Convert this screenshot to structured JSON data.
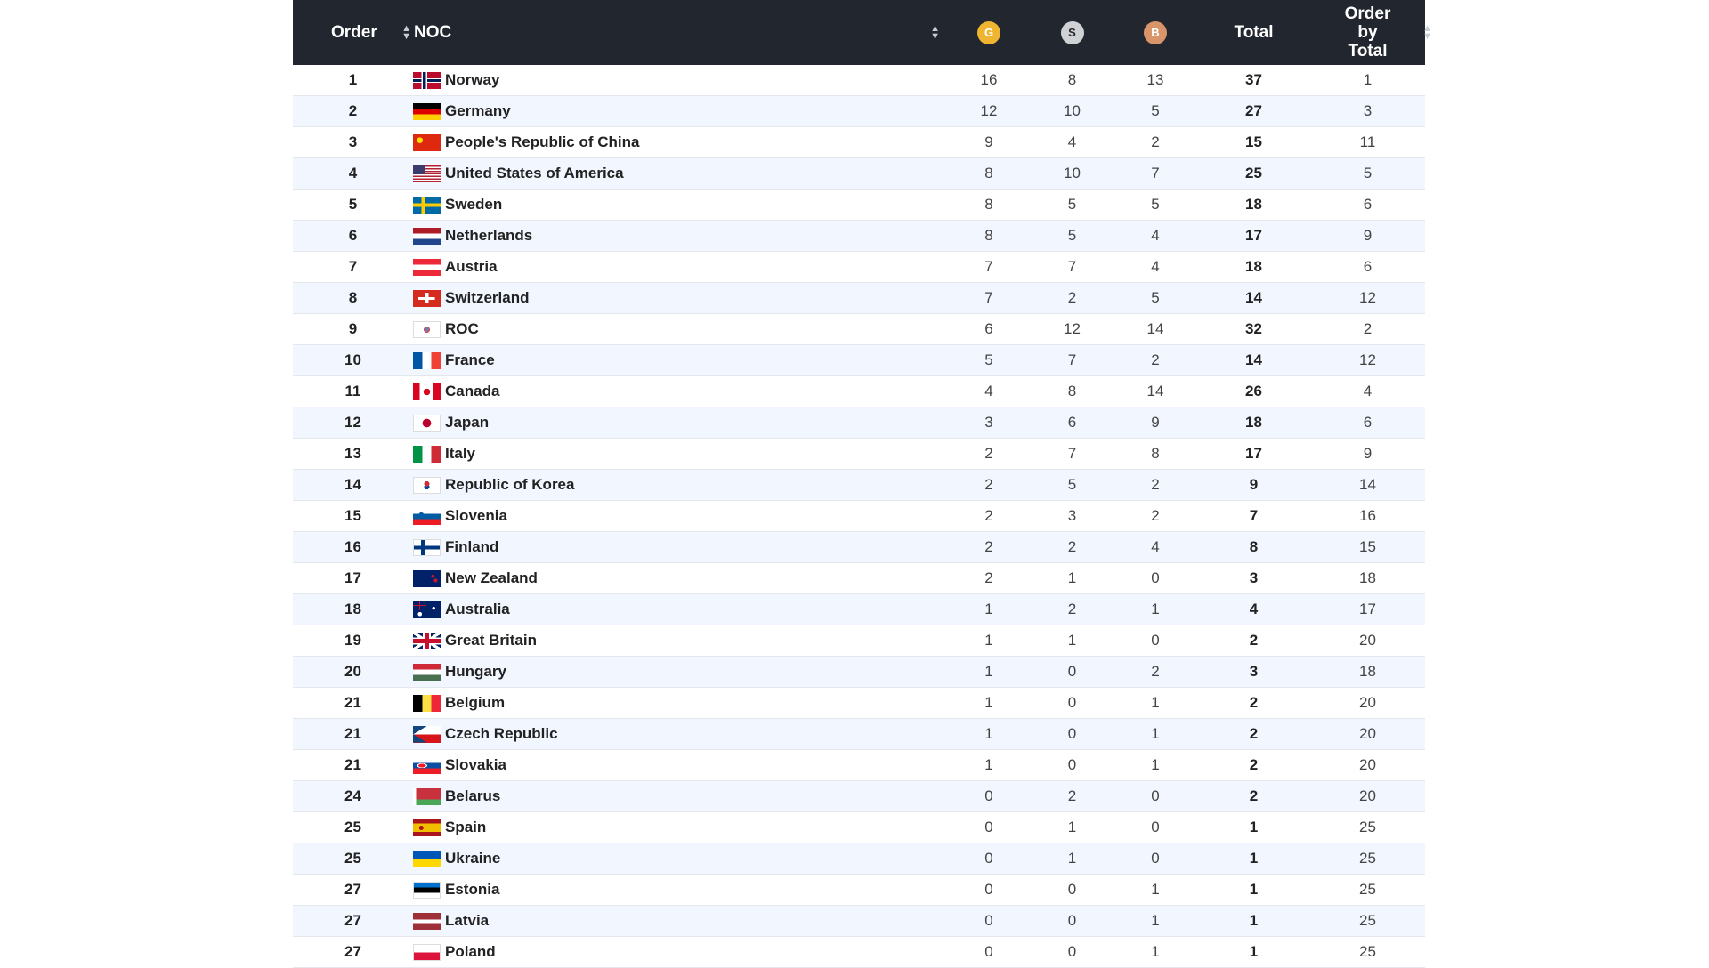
{
  "header": {
    "order": "Order",
    "noc": "NOC",
    "gold": "G",
    "silver": "S",
    "bronze": "B",
    "total": "Total",
    "order_by_total_lines": [
      "Order",
      "by",
      "Total"
    ]
  },
  "colors": {
    "header_bg": "#22262f",
    "gold": "#f0b530",
    "silver": "#cfd1d4",
    "bronze": "#d9956a",
    "row_alt": "#f1f6ff"
  },
  "rows": [
    {
      "order": "1",
      "noc": "Norway",
      "g": "16",
      "s": "8",
      "b": "13",
      "total": "37",
      "obt": "1",
      "flag": "norway-flag-icon"
    },
    {
      "order": "2",
      "noc": "Germany",
      "g": "12",
      "s": "10",
      "b": "5",
      "total": "27",
      "obt": "3",
      "flag": "germany-flag-icon"
    },
    {
      "order": "3",
      "noc": "People's Republic of China",
      "g": "9",
      "s": "4",
      "b": "2",
      "total": "15",
      "obt": "11",
      "flag": "china-flag-icon"
    },
    {
      "order": "4",
      "noc": "United States of America",
      "g": "8",
      "s": "10",
      "b": "7",
      "total": "25",
      "obt": "5",
      "flag": "usa-flag-icon"
    },
    {
      "order": "5",
      "noc": "Sweden",
      "g": "8",
      "s": "5",
      "b": "5",
      "total": "18",
      "obt": "6",
      "flag": "sweden-flag-icon"
    },
    {
      "order": "6",
      "noc": "Netherlands",
      "g": "8",
      "s": "5",
      "b": "4",
      "total": "17",
      "obt": "9",
      "flag": "netherlands-flag-icon"
    },
    {
      "order": "7",
      "noc": "Austria",
      "g": "7",
      "s": "7",
      "b": "4",
      "total": "18",
      "obt": "6",
      "flag": "austria-flag-icon"
    },
    {
      "order": "8",
      "noc": "Switzerland",
      "g": "7",
      "s": "2",
      "b": "5",
      "total": "14",
      "obt": "12",
      "flag": "switzerland-flag-icon"
    },
    {
      "order": "9",
      "noc": "ROC",
      "g": "6",
      "s": "12",
      "b": "14",
      "total": "32",
      "obt": "2",
      "flag": "roc-flag-icon"
    },
    {
      "order": "10",
      "noc": "France",
      "g": "5",
      "s": "7",
      "b": "2",
      "total": "14",
      "obt": "12",
      "flag": "france-flag-icon"
    },
    {
      "order": "11",
      "noc": "Canada",
      "g": "4",
      "s": "8",
      "b": "14",
      "total": "26",
      "obt": "4",
      "flag": "canada-flag-icon"
    },
    {
      "order": "12",
      "noc": "Japan",
      "g": "3",
      "s": "6",
      "b": "9",
      "total": "18",
      "obt": "6",
      "flag": "japan-flag-icon"
    },
    {
      "order": "13",
      "noc": "Italy",
      "g": "2",
      "s": "7",
      "b": "8",
      "total": "17",
      "obt": "9",
      "flag": "italy-flag-icon"
    },
    {
      "order": "14",
      "noc": "Republic of Korea",
      "g": "2",
      "s": "5",
      "b": "2",
      "total": "9",
      "obt": "14",
      "flag": "korea-flag-icon"
    },
    {
      "order": "15",
      "noc": "Slovenia",
      "g": "2",
      "s": "3",
      "b": "2",
      "total": "7",
      "obt": "16",
      "flag": "slovenia-flag-icon"
    },
    {
      "order": "16",
      "noc": "Finland",
      "g": "2",
      "s": "2",
      "b": "4",
      "total": "8",
      "obt": "15",
      "flag": "finland-flag-icon"
    },
    {
      "order": "17",
      "noc": "New Zealand",
      "g": "2",
      "s": "1",
      "b": "0",
      "total": "3",
      "obt": "18",
      "flag": "new-zealand-flag-icon"
    },
    {
      "order": "18",
      "noc": "Australia",
      "g": "1",
      "s": "2",
      "b": "1",
      "total": "4",
      "obt": "17",
      "flag": "australia-flag-icon"
    },
    {
      "order": "19",
      "noc": "Great Britain",
      "g": "1",
      "s": "1",
      "b": "0",
      "total": "2",
      "obt": "20",
      "flag": "great-britain-flag-icon"
    },
    {
      "order": "20",
      "noc": "Hungary",
      "g": "1",
      "s": "0",
      "b": "2",
      "total": "3",
      "obt": "18",
      "flag": "hungary-flag-icon"
    },
    {
      "order": "21",
      "noc": "Belgium",
      "g": "1",
      "s": "0",
      "b": "1",
      "total": "2",
      "obt": "20",
      "flag": "belgium-flag-icon"
    },
    {
      "order": "21",
      "noc": "Czech Republic",
      "g": "1",
      "s": "0",
      "b": "1",
      "total": "2",
      "obt": "20",
      "flag": "czech-flag-icon"
    },
    {
      "order": "21",
      "noc": "Slovakia",
      "g": "1",
      "s": "0",
      "b": "1",
      "total": "2",
      "obt": "20",
      "flag": "slovakia-flag-icon"
    },
    {
      "order": "24",
      "noc": "Belarus",
      "g": "0",
      "s": "2",
      "b": "0",
      "total": "2",
      "obt": "20",
      "flag": "belarus-flag-icon"
    },
    {
      "order": "25",
      "noc": "Spain",
      "g": "0",
      "s": "1",
      "b": "0",
      "total": "1",
      "obt": "25",
      "flag": "spain-flag-icon"
    },
    {
      "order": "25",
      "noc": "Ukraine",
      "g": "0",
      "s": "1",
      "b": "0",
      "total": "1",
      "obt": "25",
      "flag": "ukraine-flag-icon"
    },
    {
      "order": "27",
      "noc": "Estonia",
      "g": "0",
      "s": "0",
      "b": "1",
      "total": "1",
      "obt": "25",
      "flag": "estonia-flag-icon"
    },
    {
      "order": "27",
      "noc": "Latvia",
      "g": "0",
      "s": "0",
      "b": "1",
      "total": "1",
      "obt": "25",
      "flag": "latvia-flag-icon"
    },
    {
      "order": "27",
      "noc": "Poland",
      "g": "0",
      "s": "0",
      "b": "1",
      "total": "1",
      "obt": "25",
      "flag": "poland-flag-icon"
    }
  ]
}
